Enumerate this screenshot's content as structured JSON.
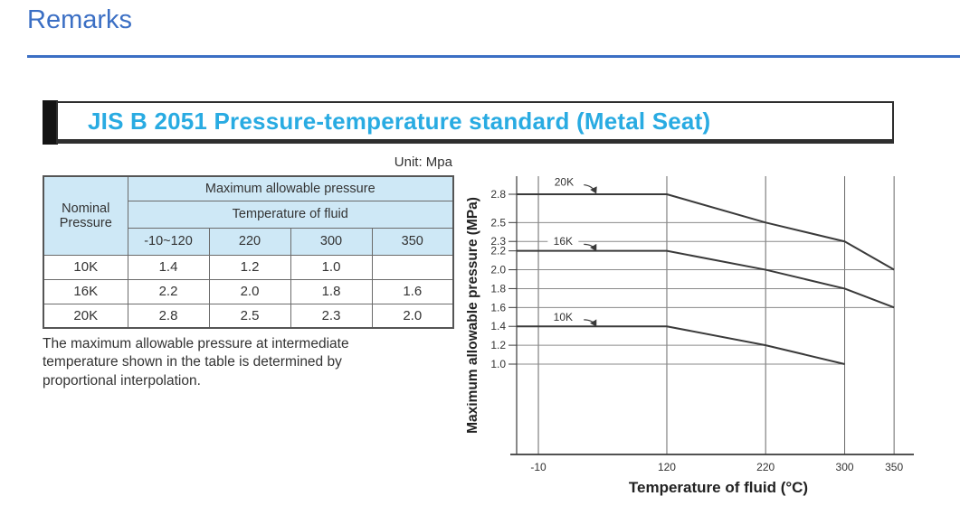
{
  "header": {
    "title": "Remarks"
  },
  "section": {
    "title": "JIS B 2051 Pressure-temperature standard (Metal Seat)"
  },
  "unit_label": "Unit: Mpa",
  "table": {
    "corner_header": "Nominal Pressure",
    "group_header": "Maximum allowable pressure",
    "sub_header": "Temperature of fluid",
    "temp_columns": [
      "-10~120",
      "220",
      "300",
      "350"
    ],
    "rows": [
      {
        "label": "10K",
        "values": [
          "1.4",
          "1.2",
          "1.0",
          ""
        ]
      },
      {
        "label": "16K",
        "values": [
          "2.2",
          "2.0",
          "1.8",
          "1.6"
        ]
      },
      {
        "label": "20K",
        "values": [
          "2.8",
          "2.5",
          "2.3",
          "2.0"
        ]
      }
    ]
  },
  "note": "The maximum allowable pressure at intermediate temperature shown in the table is determined by proportional interpolation.",
  "colors": {
    "heading_blue": "#3B6FC4",
    "title_cyan": "#29ABE2",
    "table_header_bg": "#CEE8F6",
    "line_dark": "#3a3a3a",
    "grid_gray": "#8a8a8a"
  },
  "chart_data": {
    "type": "line",
    "xlabel": "Temperature of fluid (°C)",
    "ylabel": "Maximum allowable pressure (MPa)",
    "x_ticks": [
      -10,
      120,
      220,
      300,
      350
    ],
    "y_ticks": [
      2.8,
      2.5,
      2.3,
      2.2,
      2.0,
      1.8,
      1.6,
      1.4,
      1.2,
      1.0
    ],
    "grid": true,
    "legend_position": "inline-labels",
    "series": [
      {
        "name": "20K",
        "points": [
          [
            -10,
            2.8
          ],
          [
            120,
            2.8
          ],
          [
            220,
            2.5
          ],
          [
            300,
            2.3
          ],
          [
            350,
            2.0
          ]
        ]
      },
      {
        "name": "16K",
        "points": [
          [
            -10,
            2.2
          ],
          [
            120,
            2.2
          ],
          [
            220,
            2.0
          ],
          [
            300,
            1.8
          ],
          [
            350,
            1.6
          ]
        ]
      },
      {
        "name": "10K",
        "points": [
          [
            -10,
            1.4
          ],
          [
            120,
            1.4
          ],
          [
            220,
            1.2
          ],
          [
            300,
            1.0
          ]
        ]
      }
    ],
    "h_gridlines": [
      {
        "y": 2.5,
        "x_end": 220
      },
      {
        "y": 2.3,
        "x_end": 300
      },
      {
        "y": 2.0,
        "x_end": 350
      },
      {
        "y": 1.8,
        "x_end": 300
      },
      {
        "y": 1.6,
        "x_end": 350
      },
      {
        "y": 1.2,
        "x_end": 220
      },
      {
        "y": 1.0,
        "x_end": 300
      }
    ],
    "series_labels": [
      {
        "text": "20K",
        "x": 16,
        "y": 2.93,
        "arrow_from": [
          36,
          2.9
        ],
        "arrow_to": [
          48,
          2.82
        ]
      },
      {
        "text": "16K",
        "x": 15,
        "y": 2.3,
        "arrow_from": [
          36,
          2.27
        ],
        "arrow_to": [
          48,
          2.21
        ]
      },
      {
        "text": "10K",
        "x": 15,
        "y": 1.5,
        "arrow_from": [
          36,
          1.47
        ],
        "arrow_to": [
          48,
          1.41
        ]
      }
    ]
  }
}
